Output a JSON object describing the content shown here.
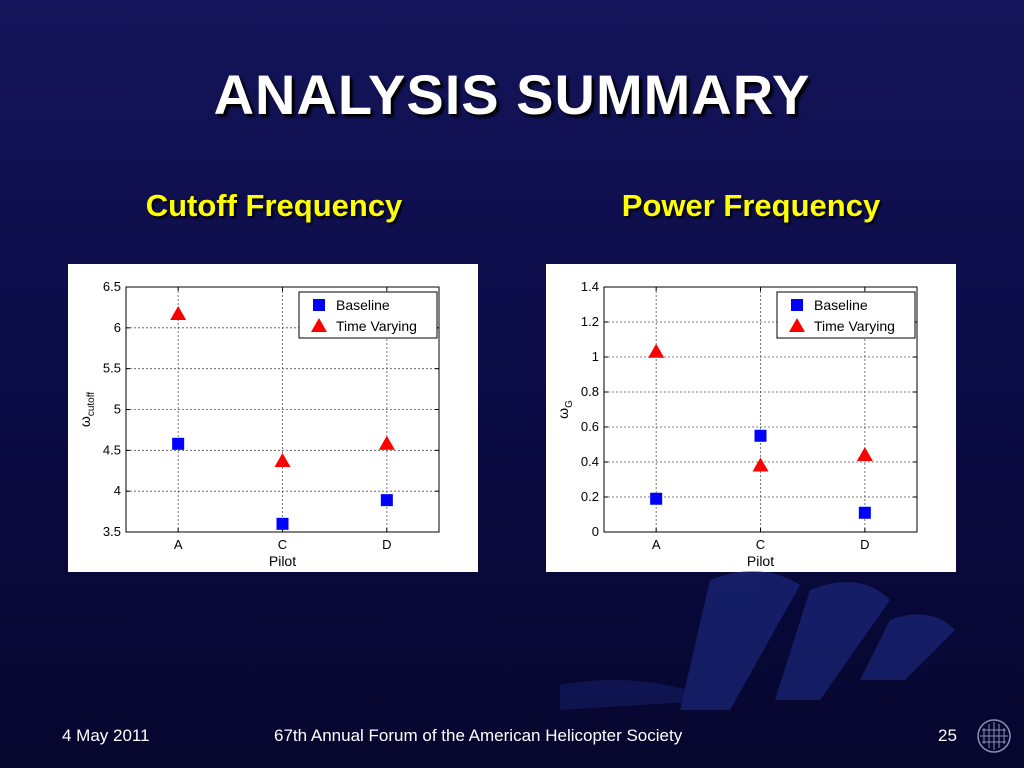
{
  "slide": {
    "title": "ANALYSIS SUMMARY",
    "left_heading": "Cutoff Frequency",
    "right_heading": "Power Frequency",
    "footer_date": "4 May 2011",
    "footer_event": "67th Annual Forum of the American Helicopter Society",
    "page_number": "25"
  },
  "colors": {
    "background": "#0c0c48",
    "title": "#ffffff",
    "heading": "#ffff00",
    "baseline": "#0000ff",
    "time_varying": "#ff0000"
  },
  "chart_data": [
    {
      "type": "scatter",
      "title": "",
      "categories": [
        "A",
        "C",
        "D"
      ],
      "xlabel": "Pilot",
      "ylabel": "ω",
      "ylabel_sub": "cutoff",
      "ylim": [
        3.5,
        6.5
      ],
      "yticks": [
        3.5,
        4,
        4.5,
        5,
        5.5,
        6,
        6.5
      ],
      "ytick_labels": [
        "3.5",
        "4",
        "4.5",
        "5",
        "5.5",
        "6",
        "6.5"
      ],
      "grid": true,
      "legend": "top-right",
      "series": [
        {
          "name": "Baseline",
          "marker": "square",
          "color": "#0000ff",
          "values": [
            4.58,
            3.6,
            3.89
          ]
        },
        {
          "name": "Time Varying",
          "marker": "triangle",
          "color": "#ff0000",
          "values": [
            6.17,
            4.37,
            4.58
          ]
        }
      ]
    },
    {
      "type": "scatter",
      "title": "",
      "categories": [
        "A",
        "C",
        "D"
      ],
      "xlabel": "Pilot",
      "ylabel": "ω",
      "ylabel_sub": "G",
      "ylim": [
        0,
        1.4
      ],
      "yticks": [
        0,
        0.2,
        0.4,
        0.6,
        0.8,
        1,
        1.2,
        1.4
      ],
      "ytick_labels": [
        "0",
        "0.2",
        "0.4",
        "0.6",
        "0.8",
        "1",
        "1.2",
        "1.4"
      ],
      "grid": true,
      "legend": "top-right",
      "series": [
        {
          "name": "Baseline",
          "marker": "square",
          "color": "#0000ff",
          "values": [
            0.19,
            0.55,
            0.11
          ]
        },
        {
          "name": "Time Varying",
          "marker": "triangle",
          "color": "#ff0000",
          "values": [
            1.03,
            0.38,
            0.44
          ]
        }
      ]
    }
  ]
}
